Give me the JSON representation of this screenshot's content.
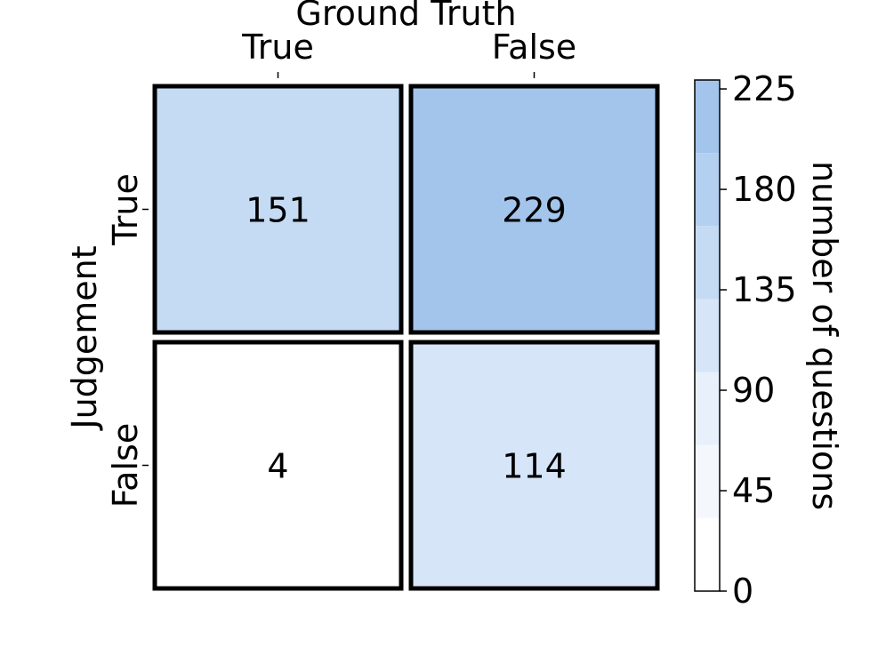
{
  "chart_data": {
    "type": "heatmap",
    "title": "Ground Truth",
    "xlabel": "Ground Truth",
    "ylabel": "Judgement",
    "x_categories": [
      "True",
      "False"
    ],
    "y_categories": [
      "True",
      "False"
    ],
    "values": [
      [
        151,
        229
      ],
      [
        4,
        114
      ]
    ],
    "colorbar": {
      "label": "number of questions",
      "ticks": [
        0,
        45,
        90,
        135,
        180,
        225
      ],
      "range": [
        0,
        229
      ],
      "levels": 7,
      "colors": [
        "#ffffff",
        "#f4f8fd",
        "#e8f0fb",
        "#d6e5f7",
        "#c4dbf3",
        "#b4d0f0",
        "#a3c5ec"
      ]
    },
    "x_ticks_position": "top"
  }
}
